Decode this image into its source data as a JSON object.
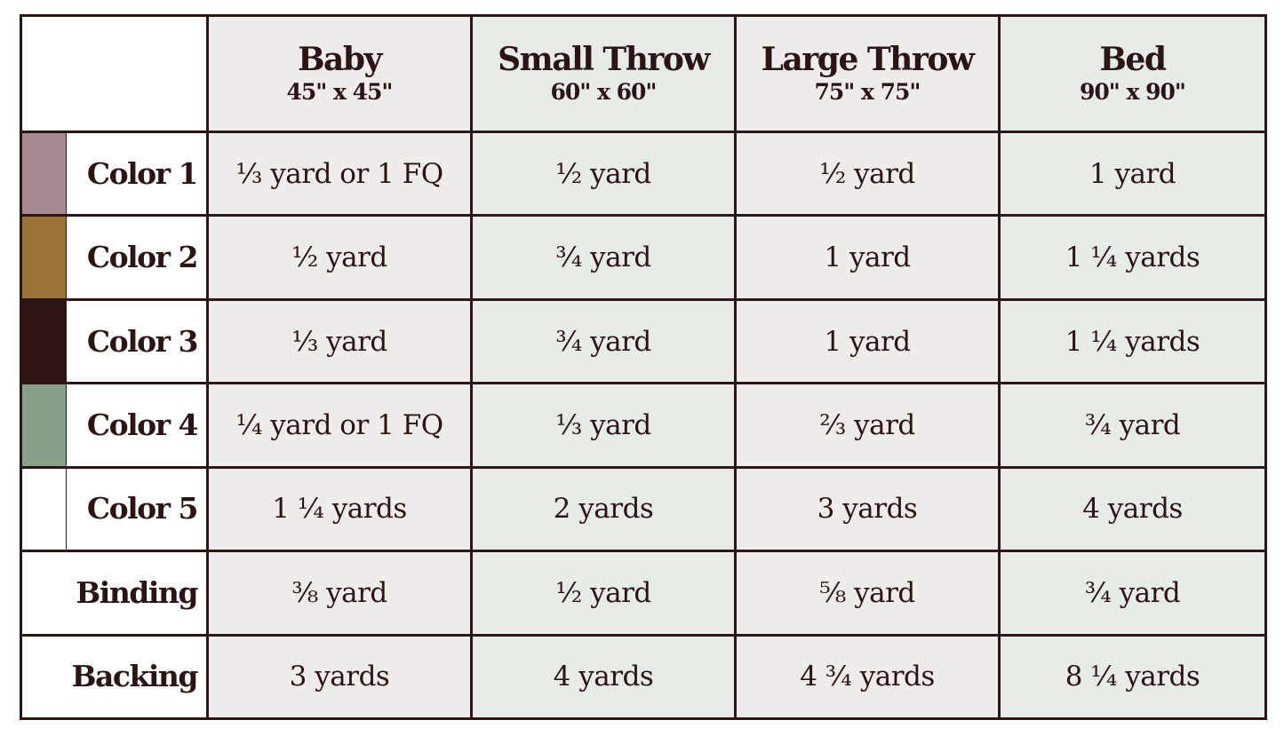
{
  "columns": [
    {
      "name": "Baby",
      "dims": "45\" x 45\""
    },
    {
      "name": "Small Throw",
      "dims": "60\" x 60\""
    },
    {
      "name": "Large Throw",
      "dims": "75\" x 75\""
    },
    {
      "name": "Bed",
      "dims": "90\" x 90\""
    }
  ],
  "rows": [
    {
      "label": "Color 1",
      "swatch": "#a68a92",
      "values": [
        "⅓ yard or 1 FQ",
        "½ yard",
        "½ yard",
        "1 yard"
      ]
    },
    {
      "label": "Color 2",
      "swatch": "#9b7339",
      "values": [
        "½ yard",
        "¾ yard",
        "1 yard",
        "1 ¼ yards"
      ]
    },
    {
      "label": "Color 3",
      "swatch": "#2e1513",
      "values": [
        "⅓ yard",
        "¾ yard",
        "1 yard",
        "1 ¼ yards"
      ]
    },
    {
      "label": "Color 4",
      "swatch": "#88a08a",
      "values": [
        "¼ yard or 1 FQ",
        "⅓ yard",
        "⅔ yard",
        "¾ yard"
      ]
    },
    {
      "label": "Color 5",
      "swatch": "#ffffff",
      "values": [
        "1 ¼ yards",
        "2 yards",
        "3 yards",
        "4 yards"
      ]
    },
    {
      "label": "Binding",
      "values": [
        "⅜ yard",
        "½ yard",
        "⅝ yard",
        "¾ yard"
      ]
    },
    {
      "label": "Backing",
      "values": [
        "3 yards",
        "4 yards",
        "4 ¾ yards",
        "8 ¼ yards"
      ]
    }
  ],
  "colors": {
    "border": "#2c1616",
    "pink_column": "#f1ecec",
    "green_column": "#e8ece7"
  }
}
